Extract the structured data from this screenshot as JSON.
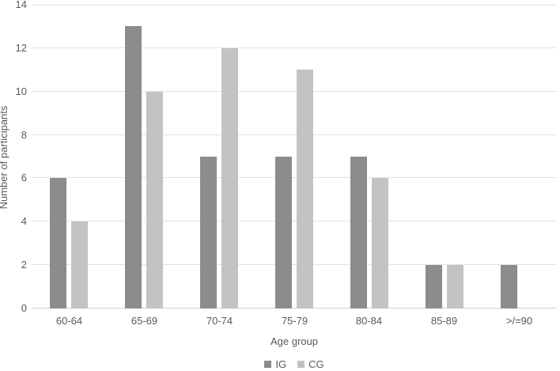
{
  "figure": {
    "background": "#ffffff",
    "text_color": "#595959",
    "gridline_color": "#e2e2e2",
    "axisline_color": "#d0d0d0"
  },
  "chart_data": {
    "type": "bar",
    "title": "",
    "categories": [
      "60-64",
      "65-69",
      "70-74",
      "75-79",
      "80-84",
      "85-89",
      ">/=90"
    ],
    "series": [
      {
        "name": "IG",
        "color": "#8c8c8c",
        "values": [
          6,
          13,
          7,
          7,
          7,
          2,
          2
        ]
      },
      {
        "name": "CG",
        "color": "#c3c3c3",
        "values": [
          4,
          10,
          12,
          11,
          6,
          2,
          0
        ]
      }
    ],
    "xlabel": "Age group",
    "ylabel": "Number of participants",
    "ylim": [
      0,
      14
    ],
    "ytick_step": 2,
    "yticks": [
      0,
      2,
      4,
      6,
      8,
      10,
      12,
      14
    ],
    "grid": true,
    "legend_position": "bottom-center"
  }
}
